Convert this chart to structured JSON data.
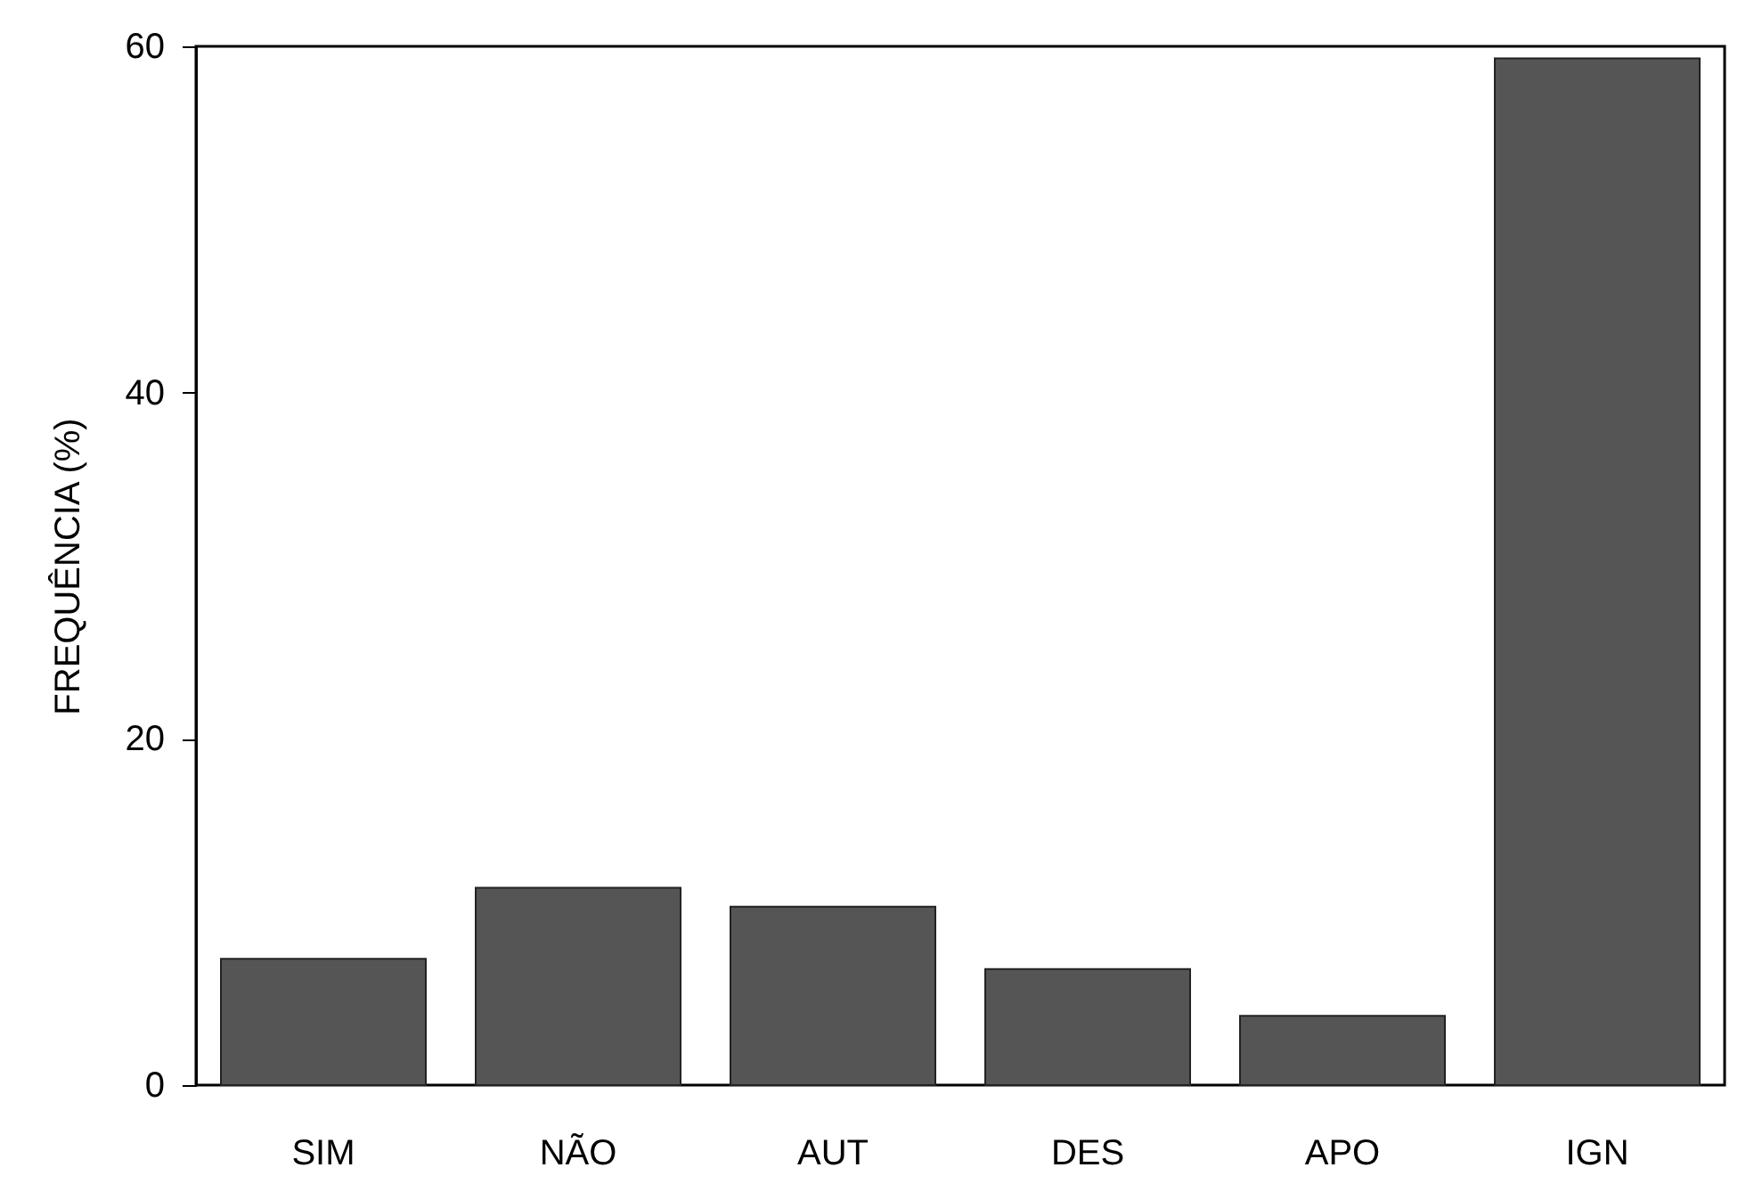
{
  "chart_data": {
    "type": "bar",
    "ylabel": "FREQUÊNCIA (%)",
    "categories": [
      "SIM",
      "NÃO",
      "AUT",
      "DES",
      "APO",
      "IGN"
    ],
    "values": [
      7.3,
      11.4,
      10.3,
      6.7,
      4.0,
      59.3
    ],
    "color": "#555555",
    "ylim": [
      0,
      60
    ],
    "yticks": [
      0,
      20,
      40,
      60
    ],
    "grid": false
  }
}
